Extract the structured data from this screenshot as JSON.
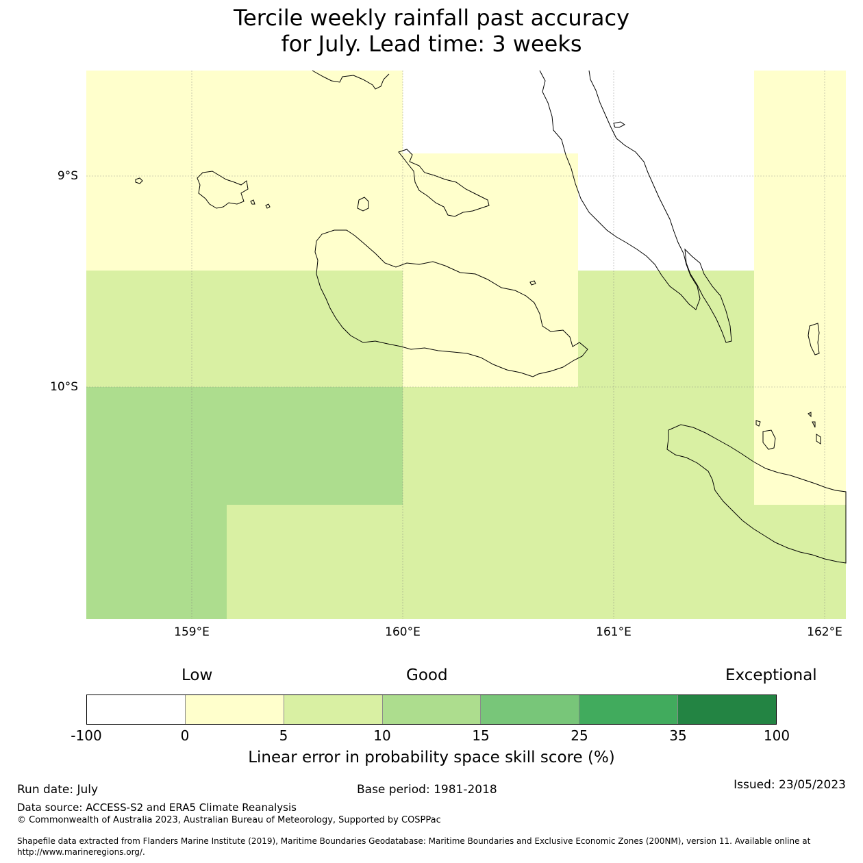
{
  "title": {
    "line1": "Tercile weekly rainfall past accuracy",
    "line2": "for July. Lead time: 3 weeks"
  },
  "map": {
    "lat_labels": [
      "9°S",
      "10°S"
    ],
    "lon_labels": [
      "159°E",
      "160°E",
      "161°E",
      "162°E"
    ],
    "gridlines": true,
    "coastline_color": "#000000"
  },
  "legend": {
    "categories": [
      "Low",
      "Good",
      "Exceptional"
    ],
    "ticks": [
      "-100",
      "0",
      "5",
      "10",
      "15",
      "25",
      "35",
      "100"
    ],
    "colors": [
      "#ffffff",
      "#ffffcc",
      "#d9f0a3",
      "#addd8e",
      "#78c679",
      "#41ab5d",
      "#238443"
    ],
    "title": "Linear error in probability space skill score (%)"
  },
  "footer": {
    "run_date": "Run date: July",
    "base_period": "Base period: 1981-2018",
    "issued": "Issued: 23/05/2023",
    "data_source": "Data source: ACCESS-S2 and ERA5 Climate Reanalysis",
    "copyright": "© Commonwealth of Australia 2023, Australian Bureau of Meteorology, Supported by COSPPac",
    "shapefile_line1": "Shapefile data extracted from Flanders Marine Institute (2019), Maritime Boundaries Geodatabase: Maritime Boundaries and Exclusive Economic Zones (200NM), version 11. Available online at",
    "shapefile_line2": "http://www.marineregions.org/."
  }
}
